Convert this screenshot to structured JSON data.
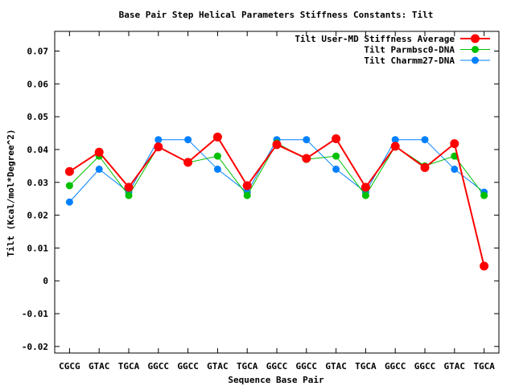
{
  "chart_data": {
    "type": "line",
    "title": "Base Pair Step Helical Parameters Stiffness Constants: Tilt",
    "xlabel": "Sequence Base Pair",
    "ylabel": "Tilt (Kcal/mol*Degree^2)",
    "categories": [
      "CGCG",
      "GTAC",
      "TGCA",
      "GGCC",
      "GGCC",
      "GTAC",
      "TGCA",
      "GGCC",
      "GGCC",
      "GTAC",
      "TGCA",
      "GGCC",
      "GGCC",
      "GTAC",
      "TGCA"
    ],
    "ylim": [
      -0.022,
      0.076
    ],
    "yticks": [
      -0.02,
      -0.01,
      0,
      0.01,
      0.02,
      0.03,
      0.04,
      0.05,
      0.06,
      0.07
    ],
    "ytick_labels": [
      "-0.02",
      "-0.01",
      "0",
      "0.01",
      "0.02",
      "0.03",
      "0.04",
      "0.05",
      "0.06",
      "0.07"
    ],
    "legend_position": "top-right",
    "grid": false,
    "series": [
      {
        "name": "Tilt User-MD Stiffness Average",
        "color": "#ff0000",
        "values": [
          0.0333,
          0.0392,
          0.0285,
          0.0408,
          0.0361,
          0.0438,
          0.029,
          0.0415,
          0.0373,
          0.0433,
          0.0285,
          0.041,
          0.0345,
          0.0418,
          0.0045
        ]
      },
      {
        "name": "Tilt Parmbsc0-DNA",
        "color": "#00c000",
        "values": [
          0.029,
          0.038,
          0.026,
          0.041,
          0.036,
          0.038,
          0.026,
          0.042,
          0.037,
          0.038,
          0.026,
          0.041,
          0.035,
          0.038,
          0.026
        ]
      },
      {
        "name": "Tilt Charmm27-DNA",
        "color": "#0080ff",
        "values": [
          0.024,
          0.034,
          0.027,
          0.043,
          0.043,
          0.034,
          0.027,
          0.043,
          0.043,
          0.034,
          0.027,
          0.043,
          0.043,
          0.034,
          0.027
        ]
      }
    ]
  }
}
